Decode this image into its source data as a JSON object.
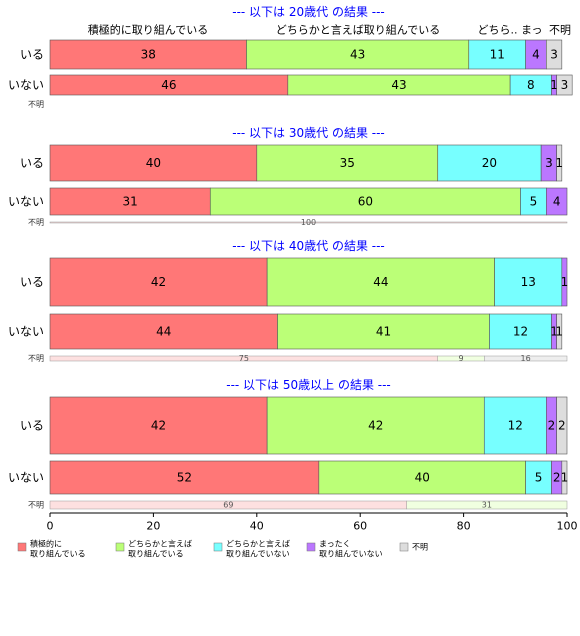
{
  "colors": {
    "categories": [
      "#ff7777",
      "#bbff77",
      "#77ffff",
      "#bb77ff",
      "#dddddd"
    ],
    "light": [
      "#fde0e0",
      "#f0ffe0",
      "#e0ffff",
      "#f0e0ff",
      "#eeeeee"
    ],
    "title": "#0000ff",
    "border": "#555555"
  },
  "legend": [
    {
      "line1": "積極的に",
      "line2": "取り組んでいる"
    },
    {
      "line1": "どちらかと言えば",
      "line2": "取り組んでいる"
    },
    {
      "line1": "どちらかと言えば",
      "line2": "取り組んでいない"
    },
    {
      "line1": "まったく",
      "line2": "取り組んでいない"
    },
    {
      "line1": "不明",
      "line2": ""
    }
  ],
  "chart_data": {
    "type": "bar",
    "stacked": true,
    "orientation": "horizontal",
    "xlim": [
      0,
      100
    ],
    "x_ticks": [
      0,
      20,
      40,
      60,
      80,
      100
    ],
    "series_names": [
      "積極的に取り組んでいる",
      "どちらかと言えば取り組んでいる",
      "どちらかと言えば取り組んでいない",
      "まったく取り組んでいない",
      "不明"
    ],
    "top_labels": [
      "積極的に取り組んでいる",
      "どちらかと言えば取り組んでいる",
      "どちら.. まっ",
      "不明"
    ],
    "panels": [
      {
        "title": "--- 以下は 20歳代 の結果 ---",
        "rows": [
          {
            "label": "いる",
            "values": [
              38,
              43,
              11,
              4,
              3
            ]
          },
          {
            "label": "いない",
            "values": [
              46,
              43,
              8,
              1,
              3
            ]
          }
        ],
        "unknown": {
          "label": "不明",
          "values": [],
          "labels": []
        }
      },
      {
        "title": "--- 以下は 30歳代 の結果 ---",
        "rows": [
          {
            "label": "いる",
            "values": [
              40,
              35,
              20,
              3,
              1
            ]
          },
          {
            "label": "いない",
            "values": [
              31,
              60,
              5,
              4,
              0
            ]
          }
        ],
        "unknown": {
          "label": "不明",
          "values": [
            100,
            0,
            0,
            0,
            0
          ],
          "labels": [
            "100"
          ]
        }
      },
      {
        "title": "--- 以下は 40歳代 の結果 ---",
        "rows": [
          {
            "label": "いる",
            "values": [
              42,
              44,
              13,
              1,
              0
            ]
          },
          {
            "label": "いない",
            "values": [
              44,
              41,
              12,
              1,
              1
            ]
          }
        ],
        "unknown": {
          "label": "不明",
          "values": [
            75,
            9,
            0,
            0,
            16
          ],
          "labels": [
            "75",
            "9",
            "",
            "",
            "16"
          ]
        }
      },
      {
        "title": "--- 以下は 50歳以上 の結果 ---",
        "rows": [
          {
            "label": "いる",
            "values": [
              42,
              42,
              12,
              2,
              2
            ]
          },
          {
            "label": "いない",
            "values": [
              52,
              40,
              5,
              2,
              1
            ]
          }
        ],
        "unknown": {
          "label": "不明",
          "values": [
            69,
            31,
            0,
            0,
            0
          ],
          "labels": [
            "69",
            "31"
          ]
        }
      }
    ]
  }
}
